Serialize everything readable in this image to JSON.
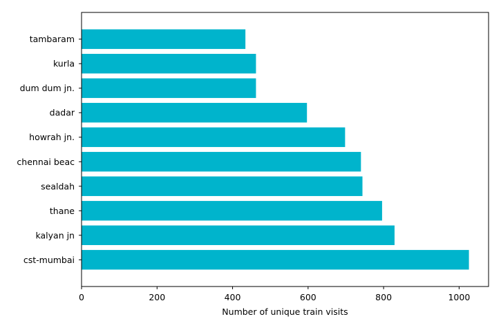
{
  "chart_data": {
    "type": "bar",
    "orientation": "horizontal",
    "categories": [
      "cst-mumbai",
      "kalyan jn",
      "thane",
      "sealdah",
      "chennai beac",
      "howrah jn.",
      "dadar",
      "dum dum jn.",
      "kurla",
      "tambaram"
    ],
    "values": [
      1026,
      829,
      796,
      744,
      740,
      698,
      597,
      462,
      462,
      434
    ],
    "xlabel": "Number of unique train visits",
    "ylabel": "",
    "xlim": [
      0,
      1078
    ],
    "xticks": [
      0,
      200,
      400,
      600,
      800,
      1000
    ],
    "bar_color": "#00B4CC",
    "grid": false
  }
}
